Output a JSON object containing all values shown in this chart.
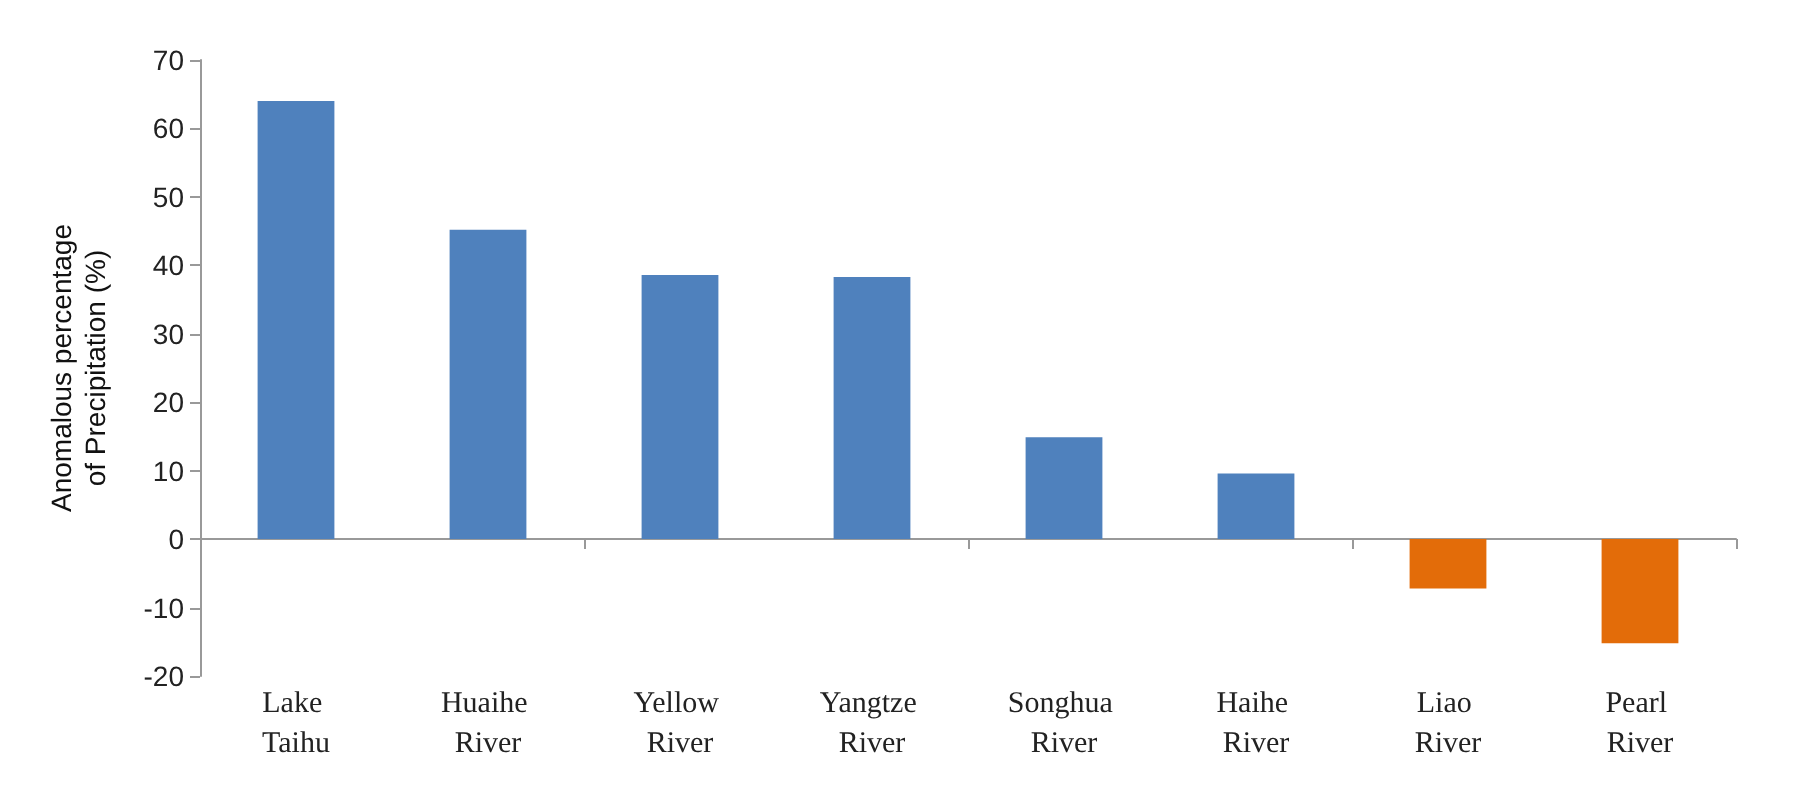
{
  "chart_data": {
    "type": "bar",
    "ylabel": "Anomalous percentage of Precipitation (%)",
    "categories": [
      "Lake Taihu",
      "Huaihe River",
      "Yellow River",
      "Yangtze River",
      "Songhua River",
      "Haihe River",
      "Liao River",
      "Pearl River"
    ],
    "values": [
      64,
      45.2,
      38.6,
      38.3,
      14.9,
      9.6,
      -7.2,
      -15.2
    ],
    "colors": [
      "#4f81bd",
      "#4f81bd",
      "#4f81bd",
      "#4f81bd",
      "#4f81bd",
      "#4f81bd",
      "#e36c09",
      "#e36c09"
    ],
    "ylim": [
      -20,
      70
    ],
    "yticks": [
      -20,
      -10,
      0,
      10,
      20,
      30,
      40,
      50,
      60,
      70
    ]
  }
}
